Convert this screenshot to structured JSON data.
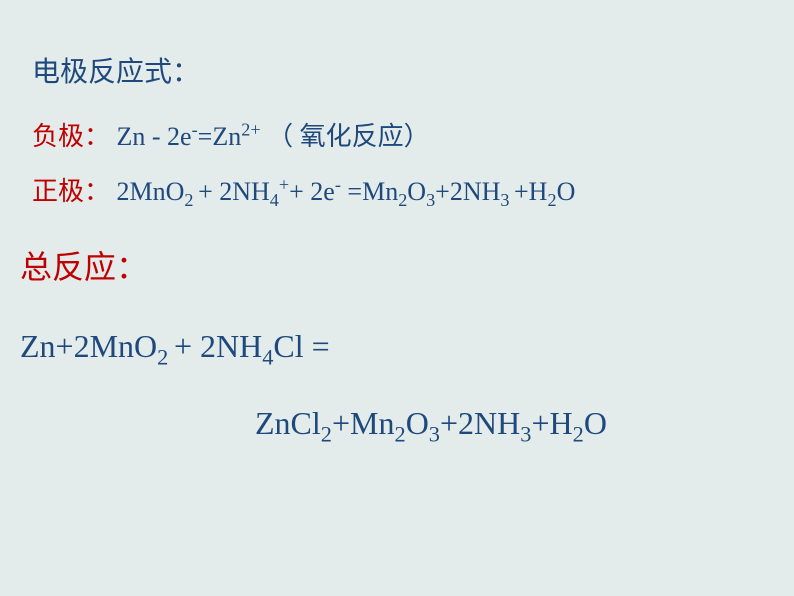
{
  "slide": {
    "background_color": "#e3eceb",
    "colors": {
      "blue": "#1f497d",
      "red": "#c00000"
    },
    "section_title": "电极反应式：",
    "negative": {
      "label": "负极：",
      "equation_html": "Zn - 2e<sup>-</sup>=Zn<sup>2+</sup>",
      "note": "（ 氧化反应）"
    },
    "positive": {
      "label": "正极：",
      "equation_html": "2MnO<sub>2 </sub>+ 2NH<sub>4</sub><sup>+</sup>+ 2e<sup>-</sup>  =Mn<sub>2</sub>O<sub>3</sub>+2NH<sub>3 </sub>+H<sub>2</sub>O"
    },
    "total": {
      "label": "总反应：",
      "line1_html": "Zn+2MnO<sub>2 </sub>+ 2NH<sub>4</sub>Cl =",
      "line2_html": "ZnCl<sub>2</sub>+Mn<sub>2</sub>O<sub>3</sub>+2NH<sub>3</sub>+H<sub>2</sub>O"
    }
  }
}
